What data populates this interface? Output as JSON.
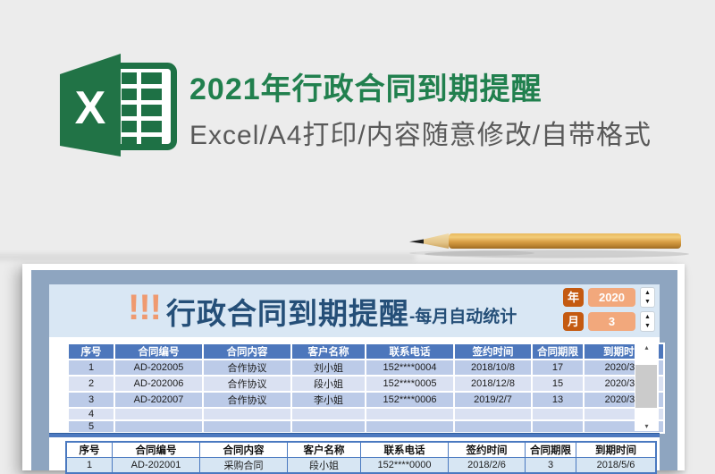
{
  "hero": {
    "logo_letter": "X",
    "title": "2021年行政合同到期提醒",
    "subtitle": "Excel/A4打印/内容随意修改/自带格式"
  },
  "sheet": {
    "title_icon": "!!!",
    "title": "行政合同到期提醒",
    "title_suffix": "-每月自动统计",
    "controls": {
      "year_label": "年",
      "year_value": "2020",
      "month_label": "月",
      "month_value": "3",
      "up_icon": "▲",
      "down_icon": "▼"
    },
    "scrollbar": {
      "up_icon": "▴",
      "down_icon": "▾"
    },
    "columns": [
      "序号",
      "合同编号",
      "合同内容",
      "客户名称",
      "联系电话",
      "签约时间",
      "合同期限",
      "到期时间"
    ],
    "upper_table_rows": [
      [
        "1",
        "AD-202005",
        "合作协议",
        "刘小姐",
        "152****0004",
        "2018/10/8",
        "17",
        "2020/3/8"
      ],
      [
        "2",
        "AD-202006",
        "合作协议",
        "段小姐",
        "152****0005",
        "2018/12/8",
        "15",
        "2020/3/8"
      ],
      [
        "3",
        "AD-202007",
        "合作协议",
        "李小姐",
        "152****0006",
        "2019/2/7",
        "13",
        "2020/3/7"
      ],
      [
        "4",
        "",
        "",
        "",
        "",
        "",
        "",
        ""
      ],
      [
        "5",
        "",
        "",
        "",
        "",
        "",
        "",
        ""
      ]
    ],
    "lower_table_rows": [
      [
        "1",
        "AD-202001",
        "采购合同",
        "段小姐",
        "152****0000",
        "2018/2/6",
        "3",
        "2018/5/6"
      ]
    ]
  },
  "colors": {
    "page_bg": "#ececec",
    "excel_green": "#217346",
    "excel_green_dark": "#1e7145",
    "hero_title_green": "#21804e",
    "hero_subtitle_gray": "#595959",
    "frame_band_blue": "#8ea5c0",
    "sheet_header_bg": "#d9e7f4",
    "sheet_title_blue": "#254f78",
    "title_icon_orange": "#ef9a70",
    "control_label_orange": "#c45a11",
    "control_field_orange": "#f2a87c",
    "table_header_blue": "#4d77bc",
    "row_odd_blue": "#bccbe8",
    "row_even_blue": "#dae1f2",
    "lower_table_border": "#4a79c0",
    "lower_row_blue": "#d7e6f3",
    "separator_blue": "#4d79c0",
    "pencil_wood": "#d99f45"
  }
}
